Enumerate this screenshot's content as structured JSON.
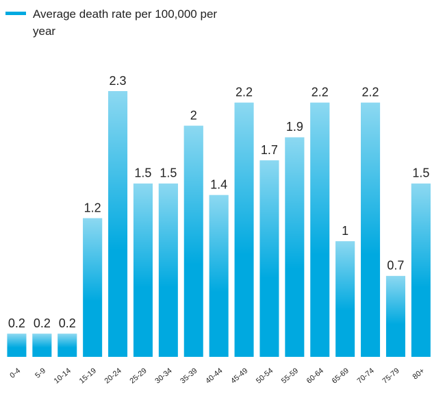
{
  "chart_data": {
    "type": "bar",
    "categories": [
      "0-4",
      "5-9",
      "10-14",
      "15-19",
      "20-24",
      "25-29",
      "30-34",
      "35-39",
      "40-44",
      "45-49",
      "50-54",
      "55-59",
      "60-64",
      "65-69",
      "70-74",
      "75-79",
      "80+"
    ],
    "series": [
      {
        "name": "Average death rate per 100,000 per year",
        "color": "#00a9e0",
        "values": [
          0.2,
          0.2,
          0.2,
          1.2,
          2.3,
          1.5,
          1.5,
          2,
          1.4,
          2.2,
          1.7,
          1.9,
          2.2,
          1,
          2.2,
          0.7,
          1.5
        ]
      }
    ],
    "legend": "top-left"
  }
}
